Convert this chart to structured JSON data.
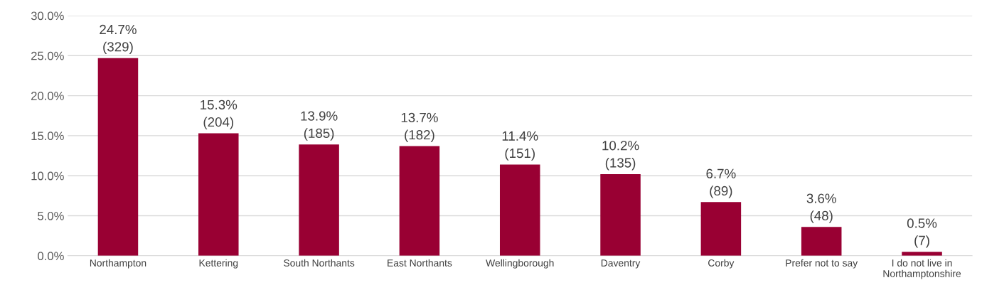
{
  "chart_data": {
    "type": "bar",
    "categories": [
      "Northampton",
      "Kettering",
      "South Northants",
      "East Northants",
      "Wellingborough",
      "Daventry",
      "Corby",
      "Prefer not to say",
      "I do not live in\nNorthamptonshire"
    ],
    "values": [
      24.7,
      15.3,
      13.9,
      13.7,
      11.4,
      10.2,
      6.7,
      3.6,
      0.5
    ],
    "value_labels": [
      "24.7%\n(329)",
      "15.3%\n(204)",
      "13.9%\n(185)",
      "13.7%\n(182)",
      "11.4%\n(151)",
      "10.2%\n(135)",
      "6.7%\n(89)",
      "3.6%\n(48)",
      "0.5%\n(7)"
    ],
    "color": "#990033",
    "ylim": [
      0,
      30
    ],
    "yticks": [
      {
        "value": 0,
        "label": "0.0%"
      },
      {
        "value": 5,
        "label": "5.0%"
      },
      {
        "value": 10,
        "label": "10.0%"
      },
      {
        "value": 15,
        "label": "15.0%"
      },
      {
        "value": 20,
        "label": "20.0%"
      },
      {
        "value": 25,
        "label": "25.0%"
      },
      {
        "value": 30,
        "label": "30.0%"
      }
    ],
    "grid": "y",
    "legend": false
  }
}
